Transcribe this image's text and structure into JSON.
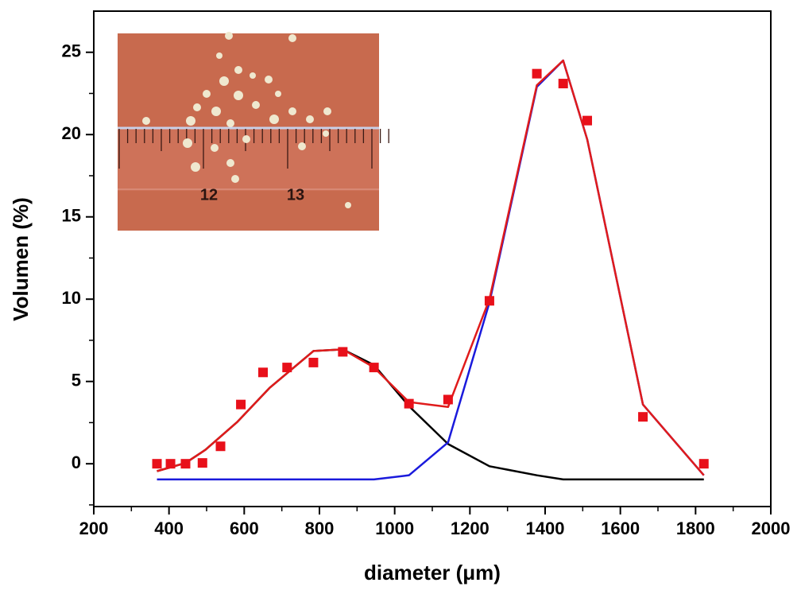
{
  "chart_data": {
    "type": "line",
    "xlabel": "diameter (μm)",
    "ylabel": "Volumen (%)",
    "xlim": [
      200,
      2000
    ],
    "ylim": [
      -2.6,
      27.5
    ],
    "xticks": [
      200,
      400,
      600,
      800,
      1000,
      1200,
      1400,
      1600,
      1800,
      2000
    ],
    "yticks": [
      0,
      5,
      10,
      15,
      20,
      25
    ],
    "xminorticks": [
      300,
      500,
      700,
      900,
      1100,
      1300,
      1500,
      1700,
      1900
    ],
    "yminorticks": [
      -2.5,
      2.5,
      7.5,
      12.5,
      17.5,
      22.5
    ],
    "series": [
      {
        "kind": "line",
        "color": "#000000",
        "x": [
          368,
          444,
          497,
          582,
          667,
          784,
          862,
          945,
          1038,
          1142,
          1252,
          1378,
          1448,
          1660,
          1822
        ],
        "values": [
          -0.45,
          0.05,
          0.85,
          2.55,
          4.6,
          6.85,
          6.95,
          6.0,
          3.5,
          1.2,
          -0.15,
          -0.7,
          -0.95,
          -0.95,
          -0.95
        ]
      },
      {
        "kind": "line",
        "color": "#1a1adc",
        "x": [
          368,
          945,
          1038,
          1142,
          1252,
          1378,
          1448,
          1512,
          1660,
          1822
        ],
        "values": [
          -0.95,
          -0.95,
          -0.7,
          1.3,
          9.8,
          22.9,
          24.5,
          19.7,
          3.6,
          -0.7
        ]
      },
      {
        "kind": "line",
        "color": "#e01b1b",
        "x": [
          368,
          444,
          497,
          582,
          667,
          784,
          862,
          945,
          1038,
          1142,
          1252,
          1378,
          1448,
          1512,
          1660,
          1822
        ],
        "values": [
          -0.45,
          0.05,
          0.85,
          2.55,
          4.6,
          6.85,
          6.95,
          5.85,
          3.75,
          3.45,
          10.0,
          23.0,
          24.5,
          19.7,
          3.6,
          -0.7
        ]
      },
      {
        "kind": "scatter",
        "color": "#e8101a",
        "x": [
          368,
          404,
          444,
          489,
          537,
          591,
          650,
          714,
          784,
          862,
          945,
          1038,
          1142,
          1252,
          1378,
          1448,
          1512,
          1660,
          1822
        ],
        "values": [
          0,
          0,
          0,
          0.05,
          1.06,
          3.6,
          5.55,
          5.85,
          6.15,
          6.8,
          5.85,
          3.65,
          3.9,
          9.9,
          23.7,
          23.1,
          20.85,
          2.85,
          0
        ]
      }
    ]
  },
  "inset": {
    "labels": [
      "12",
      "13"
    ]
  }
}
